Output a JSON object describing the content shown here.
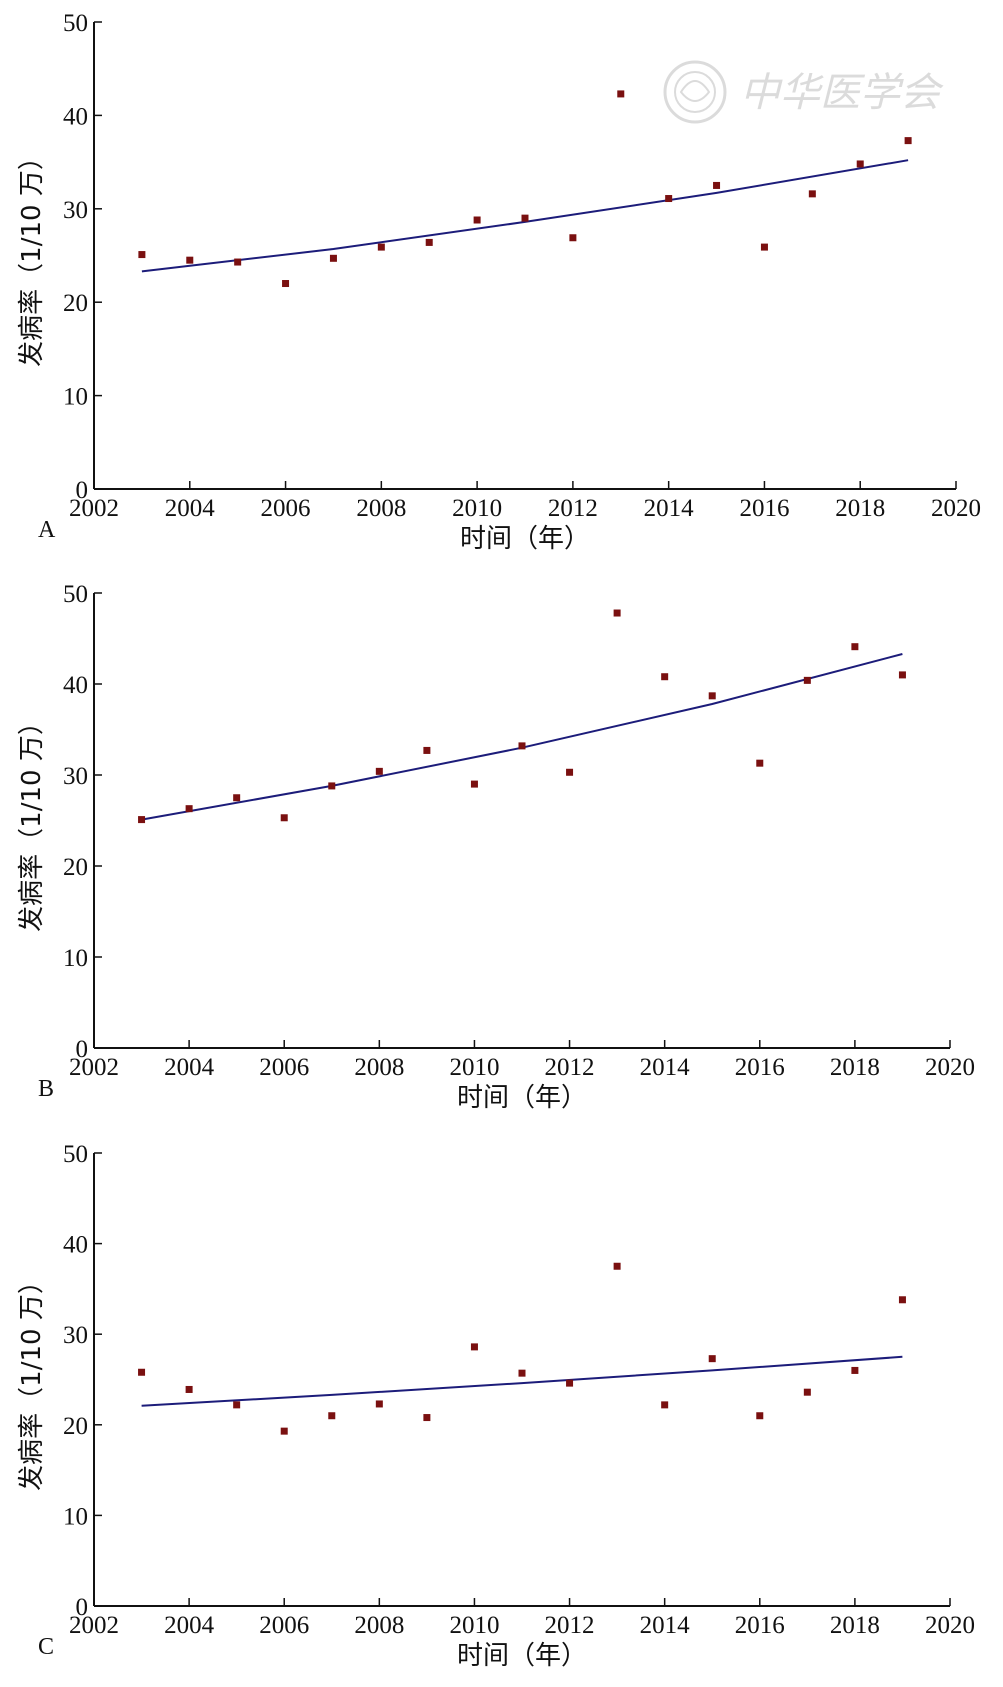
{
  "watermark": {
    "text": "中华医学会",
    "icon": "society-seal-icon",
    "color": "#d8d8d8"
  },
  "colors": {
    "marker": "#7a1010",
    "fit_line": "#1c1c7a",
    "axis": "#111111"
  },
  "chart_data": [
    {
      "panel_label": "A",
      "type": "scatter",
      "xlabel": "时间（年）",
      "ylabel": "发病率（1/10 万）",
      "xlim": [
        2002,
        2020
      ],
      "ylim": [
        0,
        50
      ],
      "x_ticks": [
        2002,
        2004,
        2006,
        2008,
        2010,
        2012,
        2014,
        2016,
        2018,
        2020
      ],
      "y_ticks": [
        0,
        10,
        20,
        30,
        40,
        50
      ],
      "x": [
        2003,
        2004,
        2005,
        2006,
        2007,
        2008,
        2009,
        2010,
        2011,
        2012,
        2013,
        2014,
        2015,
        2016,
        2017,
        2018,
        2019
      ],
      "y": [
        25.1,
        24.5,
        24.3,
        22.0,
        24.7,
        25.9,
        26.4,
        28.8,
        29.0,
        26.9,
        42.3,
        31.1,
        32.5,
        25.9,
        31.6,
        34.8,
        37.3
      ],
      "fit": {
        "x": [
          2003,
          2007,
          2011,
          2015,
          2019
        ],
        "y": [
          23.3,
          25.7,
          28.6,
          31.7,
          35.2
        ]
      }
    },
    {
      "panel_label": "B",
      "type": "scatter",
      "xlabel": "时间（年）",
      "ylabel": "发病率（1/10 万）",
      "xlim": [
        2002,
        2020
      ],
      "ylim": [
        0,
        50
      ],
      "x_ticks": [
        2002,
        2004,
        2006,
        2008,
        2010,
        2012,
        2014,
        2016,
        2018,
        2020
      ],
      "y_ticks": [
        0,
        10,
        20,
        30,
        40,
        50
      ],
      "x": [
        2003,
        2004,
        2005,
        2006,
        2007,
        2008,
        2009,
        2010,
        2011,
        2012,
        2013,
        2014,
        2015,
        2016,
        2017,
        2018,
        2019
      ],
      "y": [
        25.1,
        26.3,
        27.5,
        25.3,
        28.8,
        30.4,
        32.7,
        29.0,
        33.2,
        30.3,
        47.8,
        40.8,
        38.7,
        31.3,
        40.4,
        44.1,
        41.0
      ],
      "fit": {
        "x": [
          2003,
          2007,
          2011,
          2015,
          2019
        ],
        "y": [
          25.1,
          28.8,
          33.0,
          37.8,
          43.3
        ]
      }
    },
    {
      "panel_label": "C",
      "type": "scatter",
      "xlabel": "时间（年）",
      "ylabel": "发病率（1/10 万）",
      "xlim": [
        2002,
        2020
      ],
      "ylim": [
        0,
        50
      ],
      "x_ticks": [
        2002,
        2004,
        2006,
        2008,
        2010,
        2012,
        2014,
        2016,
        2018,
        2020
      ],
      "y_ticks": [
        0,
        10,
        20,
        30,
        40,
        50
      ],
      "x": [
        2003,
        2004,
        2005,
        2006,
        2007,
        2008,
        2009,
        2010,
        2011,
        2012,
        2013,
        2014,
        2015,
        2016,
        2017,
        2018,
        2019
      ],
      "y": [
        25.8,
        23.9,
        22.2,
        19.3,
        21.0,
        22.3,
        20.8,
        28.6,
        25.7,
        24.6,
        37.5,
        22.2,
        27.3,
        21.0,
        23.6,
        26.0,
        33.8
      ],
      "fit": {
        "x": [
          2003,
          2007,
          2011,
          2015,
          2019
        ],
        "y": [
          22.1,
          23.3,
          24.6,
          26.0,
          27.5
        ]
      }
    }
  ]
}
